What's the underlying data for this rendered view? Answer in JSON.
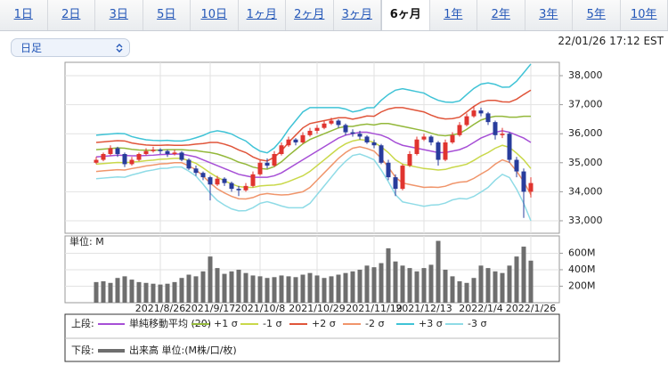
{
  "tabs": [
    "1日",
    "2日",
    "3日",
    "5日",
    "10日",
    "1ヶ月",
    "2ヶ月",
    "3ヶ月",
    "6ヶ月",
    "1年",
    "2年",
    "3年",
    "5年",
    "10年"
  ],
  "selected_tab": 8,
  "dropdown": "日足",
  "timestamp": "22/01/26 17:12 EST",
  "chart_data": [
    {
      "type": "candlestick",
      "panel_label": "上段:",
      "up_color": "#e0342f",
      "down_color": "#283c9c",
      "ylim": [
        32570,
        38460
      ],
      "yticks": [
        {
          "value": 33000,
          "label": "33,000"
        },
        {
          "value": 34000,
          "label": "34,000"
        },
        {
          "value": 35000,
          "label": "35,000"
        },
        {
          "value": 36000,
          "label": "36,000"
        },
        {
          "value": 37000,
          "label": "37,000"
        },
        {
          "value": 38000,
          "label": "38,000"
        }
      ],
      "grid": true,
      "open": [
        35000,
        35100,
        35300,
        35500,
        35300,
        34950,
        35100,
        35300,
        35400,
        35450,
        35400,
        35300,
        35350,
        35100,
        34800,
        34650,
        34500,
        34250,
        34450,
        34300,
        34100,
        34050,
        34200,
        34600,
        35000,
        34900,
        35300,
        35600,
        35800,
        35700,
        35950,
        36100,
        36200,
        36350,
        36450,
        36300,
        36050,
        36000,
        35900,
        35700,
        35600,
        35000,
        34500,
        34100,
        34900,
        35300,
        35800,
        35900,
        35700,
        35100,
        35700,
        35950,
        36300,
        36600,
        36800,
        36700,
        36400,
        35950,
        36000,
        35100,
        34700,
        34000
      ],
      "high": [
        35200,
        35350,
        35600,
        35550,
        35350,
        35200,
        35350,
        35500,
        35550,
        35500,
        35450,
        35450,
        35400,
        35150,
        34900,
        34700,
        34550,
        34550,
        34500,
        34350,
        34200,
        34300,
        34700,
        35100,
        35150,
        35400,
        35700,
        35900,
        35850,
        36050,
        36200,
        36300,
        36450,
        36550,
        36500,
        36350,
        36150,
        36100,
        35950,
        35800,
        35650,
        35100,
        34600,
        34950,
        35400,
        35900,
        36000,
        35950,
        35750,
        35800,
        36050,
        36400,
        36700,
        36950,
        36900,
        36750,
        36450,
        36200,
        36050,
        35200,
        34800,
        34500
      ],
      "low": [
        34950,
        35050,
        35250,
        35200,
        34850,
        34900,
        35050,
        35250,
        35350,
        35300,
        35200,
        35250,
        35050,
        34750,
        34550,
        34400,
        33700,
        34200,
        34200,
        34000,
        33850,
        34000,
        34150,
        34550,
        34800,
        34850,
        35250,
        35550,
        35600,
        35650,
        35900,
        36000,
        36150,
        36300,
        36200,
        35950,
        35900,
        35800,
        35650,
        35500,
        34950,
        34400,
        33850,
        34050,
        34850,
        35250,
        35750,
        35600,
        34900,
        35050,
        35650,
        35900,
        36250,
        36550,
        36600,
        36300,
        35800,
        35850,
        35000,
        34500,
        33100,
        33800
      ],
      "close": [
        35100,
        35300,
        35500,
        35300,
        34950,
        35100,
        35300,
        35400,
        35450,
        35400,
        35300,
        35350,
        35100,
        34800,
        34650,
        34500,
        34250,
        34450,
        34300,
        34100,
        34050,
        34200,
        34600,
        35000,
        34900,
        35300,
        35600,
        35800,
        35700,
        35950,
        36100,
        36200,
        36350,
        36450,
        36300,
        36050,
        36000,
        35900,
        35700,
        35600,
        35000,
        34500,
        34100,
        34900,
        35300,
        35800,
        35900,
        35700,
        35100,
        35700,
        35950,
        36300,
        36600,
        36800,
        36700,
        36400,
        35950,
        36000,
        35100,
        34700,
        34000,
        34300
      ],
      "series": [
        {
          "name": "単純移動平均 (20)",
          "color": "#a64fd6",
          "values": [
            35200,
            35220,
            35240,
            35260,
            35250,
            35240,
            35240,
            35250,
            35260,
            35280,
            35290,
            35300,
            35300,
            35250,
            35200,
            35100,
            35000,
            34900,
            34800,
            34700,
            34600,
            34550,
            34500,
            34500,
            34500,
            34550,
            34650,
            34800,
            34950,
            35100,
            35250,
            35400,
            35550,
            35700,
            35850,
            35950,
            36000,
            36050,
            36050,
            36000,
            35950,
            35850,
            35700,
            35600,
            35550,
            35500,
            35450,
            35400,
            35350,
            35350,
            35400,
            35450,
            35550,
            35700,
            35850,
            35950,
            36050,
            36100,
            36050,
            35950,
            35850,
            35700
          ]
        },
        {
          "name": "+1 σ",
          "color": "#93b83a",
          "values": [
            35450,
            35470,
            35490,
            35510,
            35500,
            35460,
            35440,
            35430,
            35430,
            35440,
            35450,
            35450,
            35450,
            35430,
            35420,
            35380,
            35350,
            35300,
            35220,
            35130,
            35020,
            34950,
            34850,
            34800,
            34780,
            34870,
            35030,
            35250,
            35450,
            35650,
            35800,
            35900,
            36000,
            36100,
            36200,
            36250,
            36250,
            36300,
            36330,
            36300,
            36350,
            36350,
            36300,
            36250,
            36200,
            36150,
            36100,
            36020,
            35950,
            35930,
            35960,
            36010,
            36150,
            36320,
            36470,
            36550,
            36600,
            36600,
            36570,
            36570,
            36600,
            36600
          ]
        },
        {
          "name": "-1 σ",
          "color": "#c9d84a",
          "values": [
            34950,
            34970,
            34990,
            35010,
            35000,
            35020,
            35040,
            35070,
            35090,
            35120,
            35130,
            35150,
            35150,
            35070,
            34980,
            34820,
            34650,
            34500,
            34380,
            34270,
            34180,
            34150,
            34150,
            34200,
            34220,
            34230,
            34270,
            34350,
            34450,
            34550,
            34700,
            34900,
            35100,
            35300,
            35500,
            35650,
            35750,
            35800,
            35770,
            35700,
            35550,
            35350,
            35100,
            34950,
            34900,
            34850,
            34800,
            34780,
            34750,
            34770,
            34840,
            34890,
            34950,
            35080,
            35230,
            35350,
            35500,
            35600,
            35530,
            35330,
            35100,
            34800
          ]
        },
        {
          "name": "+2 σ",
          "color": "#e0553a",
          "values": [
            35700,
            35720,
            35740,
            35760,
            35750,
            35680,
            35640,
            35610,
            35600,
            35600,
            35610,
            35600,
            35600,
            35610,
            35640,
            35660,
            35700,
            35700,
            35640,
            35560,
            35440,
            35350,
            35200,
            35100,
            35060,
            35190,
            35410,
            35700,
            35950,
            36200,
            36350,
            36400,
            36450,
            36500,
            36550,
            36550,
            36500,
            36550,
            36610,
            36600,
            36750,
            36850,
            36900,
            36900,
            36850,
            36800,
            36750,
            36640,
            36550,
            36510,
            36520,
            36570,
            36750,
            36940,
            37090,
            37150,
            37150,
            37100,
            37090,
            37190,
            37350,
            37500
          ]
        },
        {
          "name": "-2 σ",
          "color": "#f0956b",
          "values": [
            34700,
            34720,
            34740,
            34760,
            34750,
            34800,
            34840,
            34890,
            34920,
            34960,
            34970,
            35000,
            35000,
            34890,
            34760,
            34540,
            34300,
            34100,
            33960,
            33840,
            33760,
            33750,
            33800,
            33900,
            33940,
            33910,
            33890,
            33900,
            33950,
            34000,
            34150,
            34400,
            34650,
            34900,
            35150,
            35350,
            35500,
            35550,
            35490,
            35400,
            35150,
            34850,
            34500,
            34300,
            34250,
            34200,
            34150,
            34160,
            34150,
            34190,
            34280,
            34330,
            34350,
            34460,
            34610,
            34750,
            34950,
            35100,
            35010,
            34710,
            34350,
            33900
          ]
        },
        {
          "name": "+3 σ",
          "color": "#3fc3d6",
          "values": [
            35950,
            35970,
            35990,
            36010,
            36000,
            35900,
            35840,
            35790,
            35770,
            35760,
            35770,
            35750,
            35750,
            35790,
            35860,
            35940,
            36050,
            36100,
            36060,
            35990,
            35860,
            35750,
            35550,
            35400,
            35340,
            35510,
            35790,
            36150,
            36450,
            36750,
            36900,
            36900,
            36900,
            36900,
            36900,
            36850,
            36750,
            36800,
            36890,
            36900,
            37150,
            37350,
            37500,
            37550,
            37500,
            37450,
            37400,
            37260,
            37150,
            37090,
            37080,
            37130,
            37350,
            37560,
            37710,
            37750,
            37700,
            37600,
            37610,
            37810,
            38100,
            38400
          ]
        },
        {
          "name": "-3 σ",
          "color": "#8fdbe6",
          "values": [
            34450,
            34470,
            34490,
            34510,
            34500,
            34580,
            34640,
            34710,
            34750,
            34800,
            34810,
            34850,
            34850,
            34710,
            34540,
            34260,
            33950,
            33700,
            33540,
            33410,
            33340,
            33350,
            33450,
            33600,
            33660,
            33590,
            33510,
            33450,
            33450,
            33450,
            33600,
            33900,
            34200,
            34500,
            34800,
            35050,
            35250,
            35300,
            35210,
            35100,
            34750,
            34350,
            33900,
            33650,
            33600,
            33550,
            33500,
            33540,
            33550,
            33610,
            33720,
            33770,
            33750,
            33840,
            33990,
            34150,
            34400,
            34600,
            34490,
            34090,
            33600,
            33000
          ]
        }
      ]
    },
    {
      "type": "bar",
      "panel_label": "下段:",
      "unit_label": "単位: M",
      "ylim": [
        0,
        810
      ],
      "yticks": [
        {
          "value": 200,
          "label": "200M"
        },
        {
          "value": 400,
          "label": "400M"
        },
        {
          "value": 600,
          "label": "600M"
        }
      ],
      "grid": true,
      "categories": [
        null,
        null,
        null,
        null,
        null,
        null,
        null,
        null,
        null,
        "2021/8/26",
        null,
        null,
        null,
        null,
        null,
        null,
        "2021/9/17",
        null,
        null,
        null,
        null,
        null,
        null,
        "2021/10/8",
        null,
        null,
        null,
        null,
        null,
        null,
        null,
        "2021/10/29",
        null,
        null,
        null,
        null,
        null,
        null,
        null,
        "2021/11/19",
        null,
        null,
        null,
        null,
        null,
        null,
        "2021/12/13",
        null,
        null,
        null,
        null,
        null,
        null,
        null,
        "2022/1/4",
        null,
        null,
        null,
        null,
        null,
        null,
        "2022/1/26"
      ],
      "series": [
        {
          "name": "出来高 単位:(M株/口/枚)",
          "color": "#6e6e6e",
          "values": [
            250,
            260,
            240,
            300,
            320,
            280,
            250,
            240,
            230,
            220,
            230,
            250,
            300,
            340,
            320,
            380,
            560,
            420,
            350,
            380,
            400,
            360,
            330,
            320,
            300,
            310,
            330,
            320,
            310,
            340,
            360,
            330,
            300,
            320,
            340,
            360,
            380,
            400,
            450,
            430,
            480,
            660,
            500,
            450,
            420,
            380,
            420,
            460,
            750,
            400,
            320,
            260,
            240,
            300,
            450,
            420,
            380,
            360,
            450,
            560,
            680,
            510
          ]
        }
      ]
    }
  ]
}
